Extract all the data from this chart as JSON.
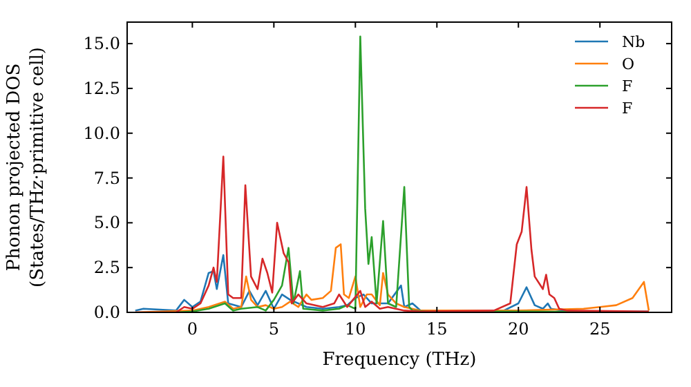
{
  "chart_data": {
    "type": "line",
    "xlabel": "Frequency (THz)",
    "ylabel": "Phonon projected DOS\n(States/THz·primitive cell)",
    "xlim": [
      -4,
      29.4
    ],
    "ylim": [
      0,
      16.2
    ],
    "xticks": [
      0,
      5,
      10,
      15,
      20,
      25
    ],
    "yticks": [
      {
        "value": 0,
        "label": "0.0"
      },
      {
        "value": 2.5,
        "label": "2.5"
      },
      {
        "value": 5,
        "label": "5.0"
      },
      {
        "value": 7.5,
        "label": "7.5"
      },
      {
        "value": 10,
        "label": "10.0"
      },
      {
        "value": 12.5,
        "label": "12.5"
      },
      {
        "value": 15,
        "label": "15.0"
      }
    ],
    "legend": "top right",
    "grid": false,
    "marker": "none",
    "line_style": "solid",
    "series": [
      {
        "name": "Nb",
        "color": "#1f77b4",
        "x": [
          -3.5,
          -3,
          -1,
          -0.5,
          0,
          0.5,
          1,
          1.3,
          1.5,
          1.9,
          2.2,
          3,
          3.5,
          4,
          4.5,
          5,
          5.5,
          6,
          7,
          8,
          9,
          9.5,
          10,
          10.5,
          11,
          12,
          12.8,
          13,
          13.5,
          14,
          15,
          19,
          20,
          20.5,
          21,
          21.5,
          21.8,
          22,
          23,
          28
        ],
        "values": [
          0.1,
          0.2,
          0.1,
          0.7,
          0.3,
          0.6,
          2.2,
          2.3,
          1.3,
          3.2,
          0.5,
          0.3,
          1.2,
          0.4,
          1.2,
          0.2,
          1.0,
          0.7,
          0.3,
          0.2,
          0.3,
          0.4,
          0.8,
          1.0,
          0.5,
          0.5,
          1.5,
          0.3,
          0.5,
          0.1,
          0.05,
          0.05,
          0.5,
          1.4,
          0.4,
          0.2,
          0.5,
          0.2,
          0.05,
          0.05
        ]
      },
      {
        "name": "O",
        "color": "#ff7f0e",
        "x": [
          -3.5,
          0,
          1,
          2,
          2.5,
          3,
          3.3,
          3.6,
          4,
          4.5,
          5,
          5.5,
          6,
          6.5,
          7,
          7.3,
          8,
          8.5,
          8.8,
          9.1,
          9.3,
          9.6,
          10,
          10.3,
          10.7,
          11,
          11.5,
          11.7,
          12,
          12.5,
          13,
          14,
          16,
          20,
          22,
          24,
          25,
          26,
          27,
          27.7,
          28
        ],
        "values": [
          0,
          0.1,
          0.3,
          0.6,
          0.2,
          0.3,
          2.0,
          0.7,
          0.3,
          0.4,
          0.2,
          0.3,
          0.6,
          0.3,
          1.0,
          0.7,
          0.8,
          1.2,
          3.6,
          3.8,
          1.0,
          0.8,
          2.0,
          0.3,
          1.0,
          1.0,
          0.4,
          2.2,
          1.0,
          0.5,
          0.3,
          0.1,
          0.1,
          0.1,
          0.15,
          0.2,
          0.3,
          0.4,
          0.8,
          1.7,
          0.1
        ]
      },
      {
        "name": "F",
        "color": "#2ca02c",
        "x": [
          -1,
          0,
          1,
          2,
          2.5,
          3,
          4,
          4.5,
          5,
          5.5,
          5.9,
          6.2,
          6.6,
          6.8,
          8,
          9,
          9.5,
          10,
          10.3,
          10.6,
          10.8,
          11,
          11.3,
          11.7,
          12,
          12.5,
          13,
          13.3,
          13.5,
          14.5,
          20,
          28
        ],
        "values": [
          0,
          0.05,
          0.2,
          0.5,
          0.1,
          0.2,
          0.3,
          0.1,
          0.7,
          1.5,
          3.6,
          0.5,
          2.3,
          0.2,
          0.1,
          0.2,
          0.4,
          0.2,
          15.4,
          5.8,
          2.7,
          4.2,
          0.5,
          5.1,
          0.5,
          0.3,
          7.0,
          0.3,
          0.1,
          0.05,
          0.05,
          0
        ]
      },
      {
        "name": "F",
        "color": "#d62728",
        "x": [
          -3.5,
          -1,
          -0.5,
          0,
          0.5,
          1,
          1.3,
          1.5,
          1.9,
          2.2,
          2.5,
          3,
          3.25,
          3.6,
          4,
          4.3,
          4.6,
          4.9,
          5.2,
          5.6,
          5.9,
          6.1,
          6.5,
          7,
          8,
          8.7,
          9,
          9.5,
          10.3,
          10.6,
          11,
          11.5,
          12,
          13,
          14,
          18.5,
          19.5,
          19.9,
          20.2,
          20.5,
          20.8,
          21,
          21.5,
          21.7,
          21.9,
          22.2,
          22.5,
          23,
          28
        ],
        "values": [
          0,
          0,
          0.3,
          0.2,
          0.5,
          1.5,
          2.5,
          1.7,
          8.7,
          1.0,
          0.8,
          0.8,
          7.1,
          2.0,
          1.3,
          3.0,
          2.2,
          1.1,
          5.0,
          3.3,
          2.8,
          0.5,
          1.0,
          0.5,
          0.3,
          0.5,
          1.0,
          0.3,
          1.2,
          0.3,
          0.6,
          0.2,
          0.3,
          0.1,
          0.05,
          0.1,
          0.5,
          3.8,
          4.5,
          7.0,
          3.5,
          2.0,
          1.3,
          2.1,
          1.0,
          0.8,
          0.2,
          0.1,
          0.05
        ]
      }
    ]
  }
}
